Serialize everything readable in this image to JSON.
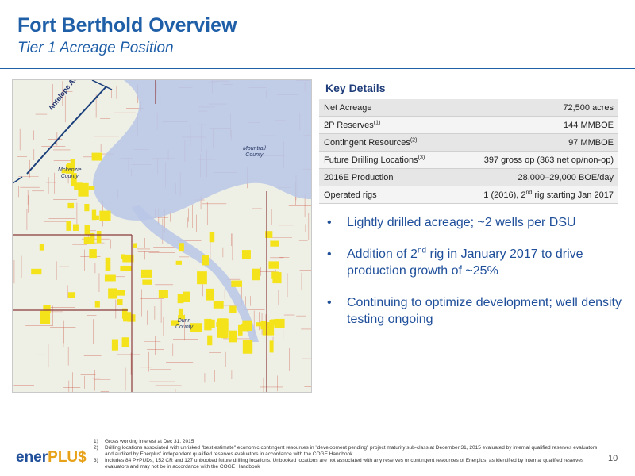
{
  "header": {
    "title": "Fort Berthold Overview",
    "subtitle": "Tier 1 Acreage Position"
  },
  "map": {
    "labels": {
      "anticline": "Antelope Anticline",
      "mountrail": "Mountrail\nCounty",
      "mckenzie": "Mckenzie\nCounty",
      "dunn": "Dunn\nCounty"
    },
    "colors": {
      "acreage": "#f4e21a",
      "river": "#1a3f7a",
      "lake": "#b9c6e6",
      "wells": "#c94a3a"
    }
  },
  "key_details": {
    "title": "Key Details",
    "rows": [
      {
        "label": "Net Acreage",
        "sup": "",
        "value": "72,500 acres"
      },
      {
        "label": "2P Reserves",
        "sup": "(1)",
        "value": "144 MMBOE"
      },
      {
        "label": "Contingent Resources",
        "sup": "(2)",
        "value": "97 MMBOE"
      },
      {
        "label": "Future Drilling Locations",
        "sup": "(3)",
        "value": "397 gross op (363 net op/non-op)"
      },
      {
        "label": "2016E Production",
        "sup": "",
        "value": "28,000–29,000 BOE/day"
      },
      {
        "label": "Operated rigs",
        "sup": "",
        "value_a": "1 (2016), 2",
        "value_sup": "nd",
        "value_b": " rig starting Jan 2017"
      }
    ]
  },
  "bullets": {
    "b1": "Lightly drilled acreage; ~2 wells per DSU",
    "b2_a": "Addition of 2",
    "b2_sup": "nd",
    "b2_b": " rig in January 2017 to drive production growth of ~25%",
    "b3": "Continuing to optimize development; well density testing ongoing"
  },
  "footnotes": [
    {
      "num": "1)",
      "text": "Gross working interest at Dec 31, 2015"
    },
    {
      "num": "2)",
      "text": "Drilling locations associated with unrisked \"best estimate\" economic contingent resources in \"development pending\" project maturity sub-class at December 31, 2015 evaluated by internal qualified reserves evaluators and audited by Enerplus' independent qualified reserves evaluators in accordance with the COGE Handbook"
    },
    {
      "num": "3)",
      "text": "Includes 84 P+PUDs, 152 CR and 127 unbooked future drilling locations. Unbooked locations are not associated with any reserves or contingent resources of Enerplus, as identified by internal qualified reserves evaluators and may not be in accordance with the COGE Handbook"
    }
  ],
  "footer": {
    "logo_a": "ener",
    "logo_b": "PLU$",
    "page": "10"
  }
}
